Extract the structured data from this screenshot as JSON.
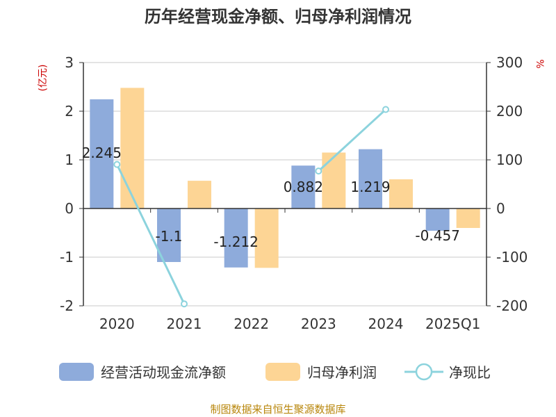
{
  "chart_data": {
    "type": "bar",
    "title": "历年经营现金净额、归母净利润情况",
    "categories": [
      "2020",
      "2021",
      "2022",
      "2023",
      "2024",
      "2025Q1"
    ],
    "left_axis": {
      "unit": "(亿元)",
      "ylim": [
        -2,
        3
      ],
      "ticks": [
        "3",
        "2",
        "1",
        "0",
        "-1",
        "-2"
      ]
    },
    "right_axis": {
      "unit": "%",
      "ylim": [
        -200,
        300
      ],
      "ticks": [
        "300",
        "200",
        "100",
        "0",
        "-100",
        "-200"
      ]
    },
    "series": [
      {
        "name": "经营活动现金流净额",
        "axis": "left",
        "color": "#8eabdb",
        "values": [
          2.245,
          -1.1,
          -1.212,
          0.882,
          1.219,
          -0.457
        ],
        "labels": [
          "2.245",
          "-1.1",
          "-1.212",
          "0.882",
          "1.219",
          "-0.457"
        ]
      },
      {
        "name": "归母净利润",
        "axis": "left",
        "color": "#fdd595",
        "values": [
          2.48,
          0.57,
          -1.22,
          1.15,
          0.6,
          -0.4
        ]
      },
      {
        "name": "净现比",
        "axis": "right",
        "type": "line",
        "color": "#8cd3dd",
        "values": [
          90.5,
          -196,
          null,
          77,
          203.5,
          null
        ]
      }
    ],
    "grid": true,
    "legend": "bottom",
    "source": "制图数据来自恒生聚源数据库"
  }
}
